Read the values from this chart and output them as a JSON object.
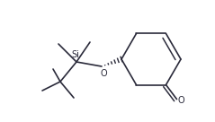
{
  "bg_color": "#ffffff",
  "line_color": "#2a2a3a",
  "line_width": 1.2,
  "figsize": [
    2.39,
    1.36
  ],
  "dpi": 100,
  "Si_label": "Si",
  "O_label": "O",
  "O_ketone_label": "O"
}
